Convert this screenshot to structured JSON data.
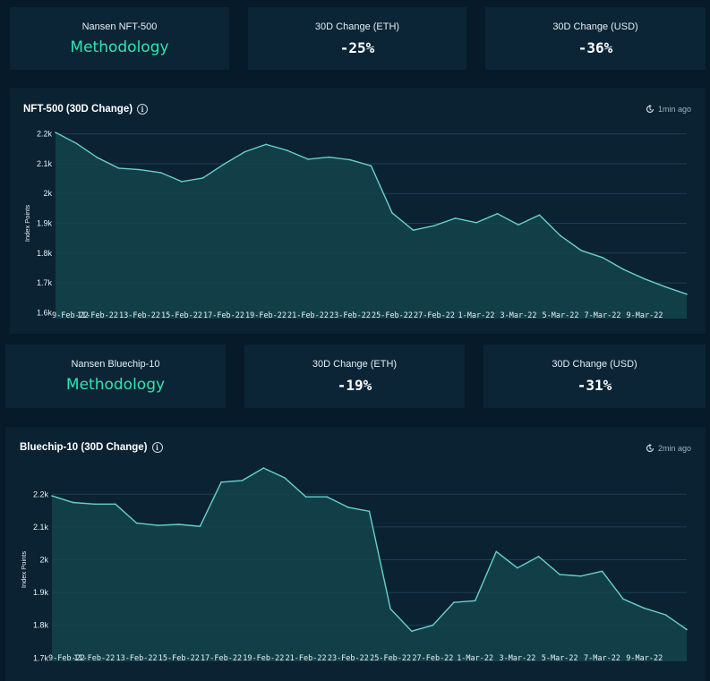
{
  "colors": {
    "background": "#061a29",
    "card": "#0b2536",
    "accent": "#2ee6b0",
    "line": "#67d0cc",
    "area": "#14444b",
    "grid": "#1e3f52"
  },
  "nft500": {
    "index_name": "Nansen NFT-500",
    "methodology_link": "Methodology",
    "eth_label": "30D Change (ETH)",
    "eth_value": "-25%",
    "usd_label": "30D Change (USD)",
    "usd_value": "-36%",
    "chart_title": "NFT-500 (30D Change)",
    "updated": "1min ago"
  },
  "bluechip": {
    "index_name": "Nansen Bluechip-10",
    "methodology_link": "Methodology",
    "eth_label": "30D Change (ETH)",
    "eth_value": "-19%",
    "usd_label": "30D Change (USD)",
    "usd_value": "-31%",
    "chart_title": "Bluechip-10 (30D Change)",
    "updated": "2min ago"
  },
  "chart_data": [
    {
      "type": "area",
      "title": "NFT-500 (30D Change)",
      "ylabel": "Index Points",
      "ylim": [
        1580,
        2220
      ],
      "yticks": [
        1600,
        1700,
        1800,
        1900,
        2000,
        2100,
        2200
      ],
      "yticklabels": [
        "1.6k",
        "1.7k",
        "1.8k",
        "1.9k",
        "2k",
        "2.1k",
        "2.2k"
      ],
      "xticklabels": [
        "9-Feb-22",
        "11-Feb-22",
        "13-Feb-22",
        "15-Feb-22",
        "17-Feb-22",
        "19-Feb-22",
        "21-Feb-22",
        "23-Feb-22",
        "25-Feb-22",
        "27-Feb-22",
        "1-Mar-22",
        "3-Mar-22",
        "5-Mar-22",
        "7-Mar-22",
        "9-Mar-22"
      ],
      "grid": true,
      "values": [
        2205,
        2168,
        2120,
        2085,
        2080,
        2070,
        2040,
        2052,
        2098,
        2140,
        2165,
        2145,
        2115,
        2122,
        2113,
        2093,
        1935,
        1877,
        1892,
        1917,
        1902,
        1932,
        1895,
        1928,
        1858,
        1808,
        1785,
        1745,
        1713,
        1686,
        1662
      ]
    },
    {
      "type": "area",
      "title": "Bluechip-10 (30D Change)",
      "ylabel": "Index Points",
      "ylim": [
        1690,
        2250
      ],
      "yticks": [
        1700,
        1800,
        1900,
        2000,
        2100,
        2200
      ],
      "yticklabels": [
        "1.7k",
        "1.8k",
        "1.9k",
        "2k",
        "2.1k",
        "2.2k"
      ],
      "xticklabels": [
        "9-Feb-22",
        "11-Feb-22",
        "13-Feb-22",
        "15-Feb-22",
        "17-Feb-22",
        "19-Feb-22",
        "21-Feb-22",
        "23-Feb-22",
        "25-Feb-22",
        "27-Feb-22",
        "1-Mar-22",
        "3-Mar-22",
        "5-Mar-22",
        "7-Mar-22",
        "9-Mar-22"
      ],
      "grid": true,
      "values": [
        2195,
        2175,
        2170,
        2170,
        2112,
        2105,
        2108,
        2102,
        2237,
        2242,
        2280,
        2250,
        2192,
        2192,
        2160,
        2148,
        1850,
        1782,
        1800,
        1870,
        1875,
        2025,
        1975,
        2010,
        1955,
        1950,
        1965,
        1880,
        1852,
        1832,
        1787
      ]
    }
  ]
}
